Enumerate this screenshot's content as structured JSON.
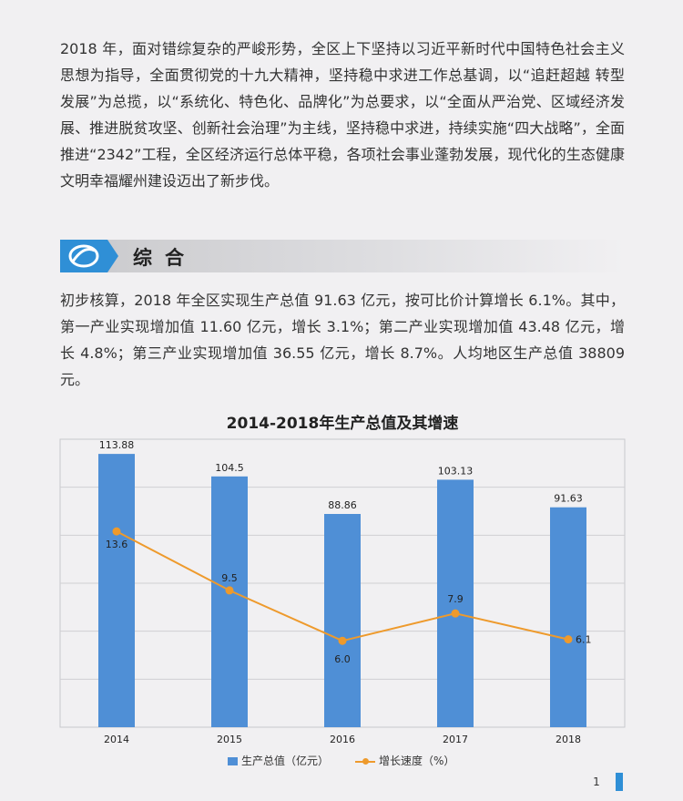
{
  "intro_paragraph": "2018 年，面对错综复杂的严峻形势，全区上下坚持以习近平新时代中国特色社会主义思想为指导，全面贯彻党的十九大精神，坚持稳中求进工作总基调，以“追赶超越 转型发展”为总揽，以“系统化、特色化、品牌化”为总要求，以“全面从严治党、区域经济发展、推进脱贫攻坚、创新社会治理”为主线，坚持稳中求进，持续实施“四大战略”，全面推进“2342”工程，全区经济运行总体平稳，各项社会事业蓬勃发展，现代化的生态健康文明幸福耀州建设迈出了新步伐。",
  "section": {
    "title": "综合",
    "icon": "logo-icon"
  },
  "summary_paragraph": "初步核算，2018 年全区实现生产总值 91.63 亿元，按可比价计算增长 6.1%。其中，第一产业实现增加值 11.60 亿元，增长 3.1%；第二产业实现增加值 43.48 亿元，增长 4.8%；第三产业实现增加值 36.55 亿元，增长 8.7%。人均地区生产总值 38809 元。",
  "chart_data": {
    "type": "bar",
    "title": "2014-2018年生产总值及其增速",
    "categories": [
      "2014",
      "2015",
      "2016",
      "2017",
      "2018"
    ],
    "series": [
      {
        "name": "生产总值（亿元）",
        "type": "bar",
        "values": [
          113.88,
          104.5,
          88.86,
          103.13,
          91.63
        ],
        "labels": [
          "113.88",
          "104.5",
          "88.86",
          "103.13",
          "91.63"
        ],
        "color": "#4f8fd6"
      },
      {
        "name": "增长速度（%）",
        "type": "line",
        "values": [
          13.6,
          9.5,
          6.0,
          7.9,
          6.1
        ],
        "labels": [
          "13.6",
          "9.5",
          "6.0",
          "7.9",
          "6.1"
        ],
        "color": "#ee9a2c"
      }
    ],
    "ylim_bar": [
      0,
      120
    ],
    "ylim_line": [
      0,
      20
    ],
    "grid": true,
    "legend": "bottom"
  },
  "page_number": "1",
  "colors": {
    "accent": "#2f8fd6",
    "bar": "#4f8fd6",
    "line": "#ee9a2c"
  }
}
